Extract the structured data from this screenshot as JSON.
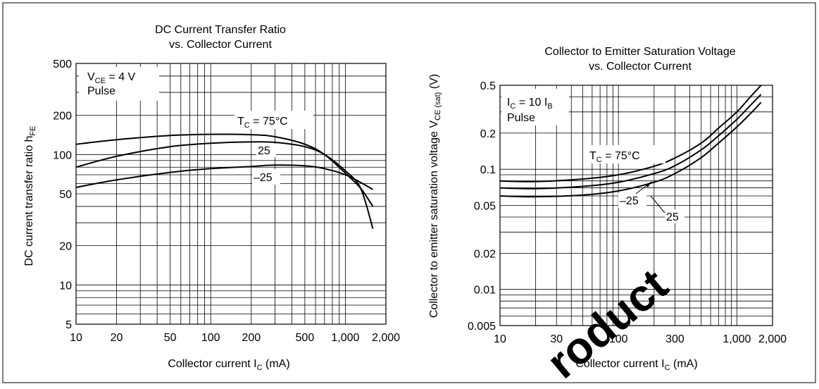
{
  "chart_data": [
    {
      "type": "line",
      "title": [
        "DC Current Transfer Ratio",
        "vs. Collector Current"
      ],
      "xlabel": {
        "text": "Collector current  I",
        "sub": "C",
        "after": "  (mA)"
      },
      "ylabel": {
        "text": "DC current transfer ratio  h",
        "sub": "FE"
      },
      "x_scale": "log",
      "y_scale": "log",
      "xlim": [
        10,
        2000
      ],
      "ylim": [
        5,
        500
      ],
      "x_ticks": [
        {
          "v": 10,
          "label": "10"
        },
        {
          "v": 20,
          "label": "20"
        },
        {
          "v": 50,
          "label": "50"
        },
        {
          "v": 100,
          "label": "100"
        },
        {
          "v": 200,
          "label": "200"
        },
        {
          "v": 500,
          "label": "500"
        },
        {
          "v": 1000,
          "label": "1,000"
        },
        {
          "v": 2000,
          "label": "2,000"
        }
      ],
      "y_ticks": [
        {
          "v": 5,
          "label": "5"
        },
        {
          "v": 10,
          "label": "10"
        },
        {
          "v": 20,
          "label": "20"
        },
        {
          "v": 50,
          "label": "50"
        },
        {
          "v": 100,
          "label": "100"
        },
        {
          "v": 200,
          "label": "200"
        },
        {
          "v": 500,
          "label": "500"
        }
      ],
      "grid": true,
      "legend_box": {
        "lines": [
          {
            "text": "V",
            "sub": "CE",
            "after": " = 4 V"
          },
          {
            "text": "Pulse"
          }
        ],
        "placement": "top-left"
      },
      "series": [
        {
          "name": "T_C = 75°C",
          "label": {
            "text": "T",
            "sub": "C",
            "after": " = 75°C"
          },
          "x": [
            10,
            20,
            50,
            100,
            200,
            300,
            500,
            700,
            1000,
            1300,
            1600
          ],
          "y": [
            120,
            130,
            140,
            143,
            142,
            137,
            120,
            100,
            72,
            55,
            40
          ]
        },
        {
          "name": "25",
          "label": {
            "text": "25"
          },
          "x": [
            10,
            20,
            50,
            100,
            200,
            300,
            500,
            700,
            1000,
            1300,
            1600
          ],
          "y": [
            80,
            97,
            115,
            122,
            125,
            124,
            115,
            100,
            75,
            55,
            27
          ]
        },
        {
          "name": "–25",
          "label": {
            "text": "–25"
          },
          "x": [
            10,
            20,
            50,
            100,
            200,
            300,
            500,
            700,
            1000,
            1300,
            1600
          ],
          "y": [
            56,
            64,
            73,
            78,
            81,
            83,
            82,
            78,
            70,
            61,
            54
          ]
        }
      ]
    },
    {
      "type": "line",
      "title": [
        "Collector to Emitter Saturation Voltage",
        "vs. Collector Current"
      ],
      "xlabel": {
        "text": "Collector current  I",
        "sub": "C",
        "after": "  (mA)"
      },
      "ylabel": {
        "text": "Collector to emitter saturation voltage  V",
        "sub": "CE (sat)",
        "after": "  (V)"
      },
      "x_scale": "log",
      "y_scale": "log",
      "xlim": [
        10,
        2000
      ],
      "ylim": [
        0.005,
        0.5
      ],
      "x_ticks": [
        {
          "v": 10,
          "label": "10"
        },
        {
          "v": 30,
          "label": "30"
        },
        {
          "v": 100,
          "label": "100"
        },
        {
          "v": 300,
          "label": "300"
        },
        {
          "v": 1000,
          "label": "1,000"
        },
        {
          "v": 2000,
          "label": "2,000"
        }
      ],
      "y_ticks": [
        {
          "v": 0.005,
          "label": "0.005"
        },
        {
          "v": 0.01,
          "label": "0.01"
        },
        {
          "v": 0.02,
          "label": "0.02"
        },
        {
          "v": 0.05,
          "label": "0.05"
        },
        {
          "v": 0.1,
          "label": "0.1"
        },
        {
          "v": 0.2,
          "label": "0.2"
        },
        {
          "v": 0.5,
          "label": "0.5"
        }
      ],
      "grid": true,
      "legend_box": {
        "lines": [
          {
            "text": "I",
            "sub": "C",
            "after": " = 10 I",
            "sub2": "B"
          },
          {
            "text": "Pulse"
          }
        ],
        "placement": "top-left"
      },
      "series": [
        {
          "name": "T_C = 75°C",
          "label": {
            "text": "T",
            "sub": "C",
            "after": " = 75°C"
          },
          "x": [
            10,
            20,
            50,
            100,
            200,
            300,
            500,
            700,
            1000,
            1300,
            1600
          ],
          "y": [
            0.06,
            0.059,
            0.061,
            0.066,
            0.078,
            0.092,
            0.125,
            0.165,
            0.225,
            0.29,
            0.36
          ]
        },
        {
          "name": "25",
          "label": {
            "text": "25"
          },
          "x": [
            10,
            20,
            50,
            100,
            200,
            300,
            500,
            700,
            1000,
            1300,
            1600
          ],
          "y": [
            0.07,
            0.069,
            0.072,
            0.078,
            0.092,
            0.107,
            0.145,
            0.19,
            0.26,
            0.34,
            0.42
          ]
        },
        {
          "name": "–25",
          "label": {
            "text": "–25"
          },
          "x": [
            10,
            20,
            50,
            100,
            200,
            300,
            500,
            700,
            1000,
            1300,
            1600
          ],
          "y": [
            0.08,
            0.079,
            0.083,
            0.09,
            0.106,
            0.124,
            0.165,
            0.22,
            0.3,
            0.4,
            0.5
          ]
        }
      ]
    }
  ],
  "watermark": {
    "text": "roduct",
    "color": "#e8000b"
  },
  "colors": {
    "ink": "#000000",
    "grid": "#000000",
    "background": "#ffffff"
  }
}
